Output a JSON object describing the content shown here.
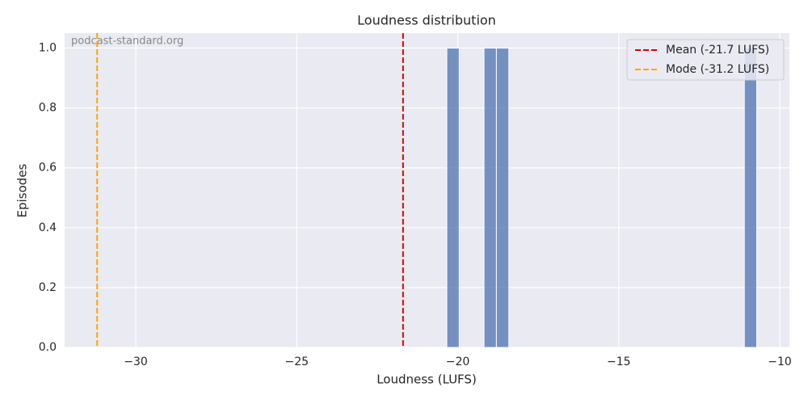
{
  "chart_data": {
    "type": "histogram",
    "title": "Loudness distribution",
    "xlabel": "Loudness (LUFS)",
    "ylabel": "Episodes",
    "bins": [
      -20.34,
      -19.955,
      -19.57,
      -19.185,
      -18.8,
      -18.415,
      -18.03,
      -17.645,
      -17.26,
      -16.875,
      -16.49,
      -16.105,
      -15.72,
      -15.335,
      -14.95,
      -14.565,
      -14.18,
      -13.795,
      -13.41,
      -13.025,
      -12.64,
      -12.255,
      -11.87,
      -11.485,
      -11.1,
      -10.715
    ],
    "counts": [
      1,
      0,
      0,
      1,
      1,
      0,
      0,
      0,
      0,
      0,
      0,
      0,
      0,
      0,
      0,
      0,
      0,
      0,
      0,
      0,
      0,
      0,
      0,
      0,
      1
    ],
    "color": "#4c72b0",
    "reference_lines": [
      {
        "name": "Mean (-21.7 LUFS)",
        "value": -21.7,
        "color": "#e00000"
      },
      {
        "name": "Mode (-31.2 LUFS)",
        "value": -31.2,
        "color": "#ffa500"
      }
    ],
    "xlim": [
      -32.21,
      -9.7
    ],
    "ylim": [
      0,
      1.05
    ],
    "xticks": [
      {
        "value": -30,
        "label": "−30"
      },
      {
        "value": -25,
        "label": "−25"
      },
      {
        "value": -20,
        "label": "−20"
      },
      {
        "value": -15,
        "label": "−15"
      },
      {
        "value": -10,
        "label": "−10"
      }
    ],
    "yticks": [
      {
        "value": 0,
        "label": "0.0"
      },
      {
        "value": 0.2,
        "label": "0.2"
      },
      {
        "value": 0.4,
        "label": "0.4"
      },
      {
        "value": 0.6,
        "label": "0.6"
      },
      {
        "value": 0.8,
        "label": "0.8"
      },
      {
        "value": 1.0,
        "label": "1.0"
      }
    ],
    "grid": true,
    "legend": "upper right",
    "watermark": "podcast-standard.org"
  }
}
